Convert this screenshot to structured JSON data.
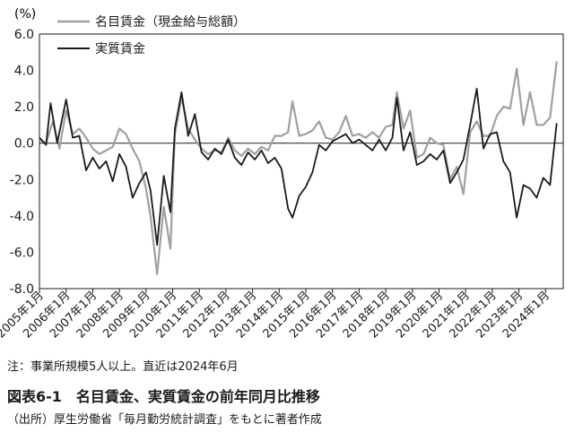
{
  "chart_data": {
    "type": "line",
    "y_unit": "(%)",
    "ylim": [
      -8.0,
      6.0
    ],
    "y_ticks": [
      "6.0",
      "4.0",
      "2.0",
      "0.0",
      "-2.0",
      "-4.0",
      "-6.0",
      "-8.0"
    ],
    "x_labels": [
      "2005年1月",
      "2006年1月",
      "2007年1月",
      "2008年1月",
      "2009年1月",
      "2010年1月",
      "2011年1月",
      "2012年1月",
      "2013年1月",
      "2014年1月",
      "2015年1月",
      "2016年1月",
      "2017年1月",
      "2018年1月",
      "2019年1月",
      "2020年1月",
      "2021年1月",
      "2022年1月",
      "2023年1月",
      "2024年1月"
    ],
    "x_start_year": 2005,
    "legend_position": "top-left",
    "series": [
      {
        "name": "名目賃金（現金給与総額）",
        "color": "#a0a0a0",
        "points": [
          [
            "2005-01",
            0.2
          ],
          [
            "2005-04",
            0.0
          ],
          [
            "2005-07",
            1.2
          ],
          [
            "2005-10",
            -0.3
          ],
          [
            "2006-01",
            1.8
          ],
          [
            "2006-04",
            0.5
          ],
          [
            "2006-07",
            0.8
          ],
          [
            "2006-10",
            0.3
          ],
          [
            "2007-01",
            -0.3
          ],
          [
            "2007-04",
            -0.6
          ],
          [
            "2007-07",
            -0.4
          ],
          [
            "2007-10",
            -0.2
          ],
          [
            "2008-01",
            0.8
          ],
          [
            "2008-04",
            0.5
          ],
          [
            "2008-07",
            -0.3
          ],
          [
            "2008-10",
            -1.0
          ],
          [
            "2009-01",
            -2.5
          ],
          [
            "2009-03",
            -4.0
          ],
          [
            "2009-06",
            -7.2
          ],
          [
            "2009-09",
            -3.5
          ],
          [
            "2009-12",
            -5.8
          ],
          [
            "2010-02",
            0.5
          ],
          [
            "2010-05",
            2.5
          ],
          [
            "2010-08",
            0.8
          ],
          [
            "2010-11",
            0.2
          ],
          [
            "2011-02",
            -0.3
          ],
          [
            "2011-05",
            -0.6
          ],
          [
            "2011-08",
            -0.4
          ],
          [
            "2011-11",
            -0.5
          ],
          [
            "2012-02",
            0.3
          ],
          [
            "2012-05",
            -0.4
          ],
          [
            "2012-08",
            -0.7
          ],
          [
            "2012-11",
            -0.3
          ],
          [
            "2013-02",
            -0.6
          ],
          [
            "2013-05",
            -0.2
          ],
          [
            "2013-08",
            -0.4
          ],
          [
            "2013-11",
            0.4
          ],
          [
            "2014-02",
            0.4
          ],
          [
            "2014-05",
            0.6
          ],
          [
            "2014-07",
            2.3
          ],
          [
            "2014-10",
            0.4
          ],
          [
            "2015-01",
            0.5
          ],
          [
            "2015-04",
            0.7
          ],
          [
            "2015-07",
            1.2
          ],
          [
            "2015-10",
            0.3
          ],
          [
            "2016-01",
            0.2
          ],
          [
            "2016-04",
            0.6
          ],
          [
            "2016-07",
            1.5
          ],
          [
            "2016-10",
            0.4
          ],
          [
            "2017-01",
            0.5
          ],
          [
            "2017-04",
            0.3
          ],
          [
            "2017-07",
            0.6
          ],
          [
            "2017-10",
            0.3
          ],
          [
            "2018-01",
            0.9
          ],
          [
            "2018-04",
            1.0
          ],
          [
            "2018-06",
            2.8
          ],
          [
            "2018-09",
            0.8
          ],
          [
            "2018-12",
            1.8
          ],
          [
            "2019-03",
            -0.8
          ],
          [
            "2019-06",
            -0.6
          ],
          [
            "2019-09",
            0.3
          ],
          [
            "2019-12",
            0.0
          ],
          [
            "2020-03",
            -0.1
          ],
          [
            "2020-06",
            -2.0
          ],
          [
            "2020-09",
            -1.3
          ],
          [
            "2020-12",
            -2.8
          ],
          [
            "2021-03",
            0.6
          ],
          [
            "2021-06",
            1.2
          ],
          [
            "2021-09",
            0.4
          ],
          [
            "2021-12",
            0.4
          ],
          [
            "2022-03",
            1.5
          ],
          [
            "2022-06",
            2.0
          ],
          [
            "2022-09",
            1.9
          ],
          [
            "2022-12",
            4.1
          ],
          [
            "2023-03",
            1.0
          ],
          [
            "2023-06",
            2.8
          ],
          [
            "2023-09",
            1.0
          ],
          [
            "2023-12",
            1.0
          ],
          [
            "2024-03",
            1.4
          ],
          [
            "2024-06",
            4.5
          ]
        ]
      },
      {
        "name": "実質賃金",
        "color": "#1a1a1a",
        "points": [
          [
            "2005-01",
            0.3
          ],
          [
            "2005-04",
            -0.1
          ],
          [
            "2005-06",
            2.2
          ],
          [
            "2005-09",
            0.0
          ],
          [
            "2006-01",
            2.4
          ],
          [
            "2006-04",
            0.3
          ],
          [
            "2006-07",
            0.4
          ],
          [
            "2006-10",
            -1.5
          ],
          [
            "2007-01",
            -0.8
          ],
          [
            "2007-04",
            -1.4
          ],
          [
            "2007-07",
            -1.0
          ],
          [
            "2007-10",
            -2.1
          ],
          [
            "2008-01",
            -0.6
          ],
          [
            "2008-04",
            -1.3
          ],
          [
            "2008-07",
            -3.0
          ],
          [
            "2008-10",
            -2.2
          ],
          [
            "2009-01",
            -1.6
          ],
          [
            "2009-03",
            -2.6
          ],
          [
            "2009-06",
            -5.6
          ],
          [
            "2009-09",
            -1.8
          ],
          [
            "2009-12",
            -3.8
          ],
          [
            "2010-02",
            0.8
          ],
          [
            "2010-05",
            2.8
          ],
          [
            "2010-08",
            0.4
          ],
          [
            "2010-11",
            1.6
          ],
          [
            "2011-02",
            -0.5
          ],
          [
            "2011-05",
            -0.9
          ],
          [
            "2011-08",
            -0.3
          ],
          [
            "2011-11",
            -0.6
          ],
          [
            "2012-02",
            0.2
          ],
          [
            "2012-05",
            -0.8
          ],
          [
            "2012-08",
            -1.2
          ],
          [
            "2012-11",
            -0.5
          ],
          [
            "2013-02",
            -0.9
          ],
          [
            "2013-05",
            -0.4
          ],
          [
            "2013-08",
            -1.1
          ],
          [
            "2013-11",
            -0.8
          ],
          [
            "2014-02",
            -1.4
          ],
          [
            "2014-05",
            -3.6
          ],
          [
            "2014-07",
            -4.1
          ],
          [
            "2014-10",
            -2.9
          ],
          [
            "2015-01",
            -2.4
          ],
          [
            "2015-04",
            -1.6
          ],
          [
            "2015-07",
            -0.1
          ],
          [
            "2015-10",
            -0.4
          ],
          [
            "2016-01",
            0.1
          ],
          [
            "2016-04",
            0.3
          ],
          [
            "2016-07",
            0.5
          ],
          [
            "2016-10",
            0.0
          ],
          [
            "2017-01",
            0.2
          ],
          [
            "2017-04",
            -0.1
          ],
          [
            "2017-07",
            -0.4
          ],
          [
            "2017-10",
            0.2
          ],
          [
            "2018-01",
            -0.4
          ],
          [
            "2018-04",
            0.3
          ],
          [
            "2018-06",
            2.5
          ],
          [
            "2018-09",
            -0.4
          ],
          [
            "2018-12",
            0.6
          ],
          [
            "2019-03",
            -1.2
          ],
          [
            "2019-06",
            -1.0
          ],
          [
            "2019-09",
            -0.6
          ],
          [
            "2019-12",
            -0.9
          ],
          [
            "2020-03",
            -0.4
          ],
          [
            "2020-06",
            -2.2
          ],
          [
            "2020-09",
            -1.6
          ],
          [
            "2020-12",
            -0.9
          ],
          [
            "2021-03",
            1.0
          ],
          [
            "2021-06",
            3.0
          ],
          [
            "2021-09",
            -0.3
          ],
          [
            "2021-12",
            0.5
          ],
          [
            "2022-03",
            0.6
          ],
          [
            "2022-06",
            -1.0
          ],
          [
            "2022-09",
            -1.6
          ],
          [
            "2022-12",
            -4.1
          ],
          [
            "2023-03",
            -2.3
          ],
          [
            "2023-06",
            -2.5
          ],
          [
            "2023-09",
            -3.0
          ],
          [
            "2023-12",
            -1.9
          ],
          [
            "2024-03",
            -2.3
          ],
          [
            "2024-06",
            1.1
          ]
        ]
      }
    ]
  },
  "note": "注：事業所規模5人以上。直近は2024年6月",
  "figure_title": "図表6-1　名目賃金、実質賃金の前年同月比推移",
  "source": "（出所）厚生労働省「毎月勤労統計調査」をもとに著者作成"
}
